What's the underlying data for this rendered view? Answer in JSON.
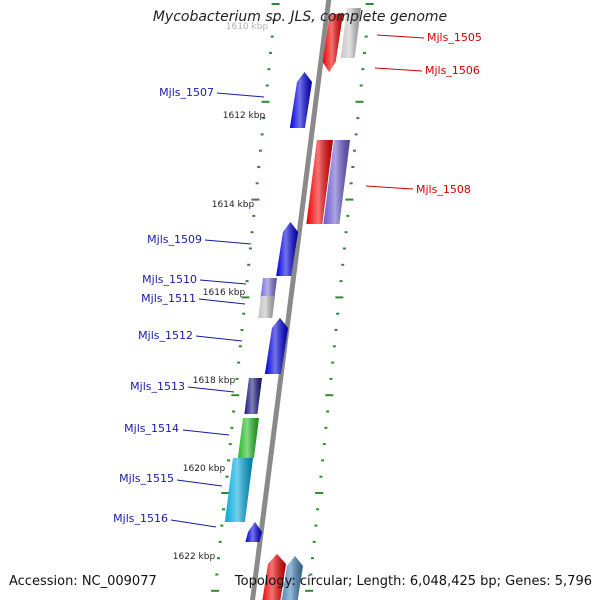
{
  "title": "Mycobacterium sp. JLS, complete genome",
  "footer": {
    "accession": "Accession: NC_009077",
    "summary": "Topology: circular; Length: 6,048,425 bp; Genes: 5,796"
  },
  "colors": {
    "backbone": "#8a8a8a",
    "tick": "#2e8b2e",
    "forward_label": "#d40000",
    "reverse_label": "#1a1aa8",
    "coord_label": "#222222"
  },
  "scale_labels": [
    {
      "text": "1610 kbp",
      "position_kbp": 1610
    },
    {
      "text": "1612 kbp",
      "position_kbp": 1612
    },
    {
      "text": "1614 kbp",
      "position_kbp": 1614
    },
    {
      "text": "1616 kbp",
      "position_kbp": 1616
    },
    {
      "text": "1618 kbp",
      "position_kbp": 1618
    },
    {
      "text": "1620 kbp",
      "position_kbp": 1620
    },
    {
      "text": "1622 kbp",
      "position_kbp": 1622
    }
  ],
  "genes": [
    {
      "label": "Mjls_1505",
      "strand": "+",
      "color": "#ee0000"
    },
    {
      "label": "Mjls_1506",
      "strand": "+",
      "color": "#c8c8c8"
    },
    {
      "label": "Mjls_1507",
      "strand": "-",
      "color": "#0000dd"
    },
    {
      "label": "Mjls_1508",
      "strand": "+",
      "color": "#6a5acd"
    },
    {
      "label": "Mjls_1509",
      "strand": "-",
      "color": "#0000dd"
    },
    {
      "label": "Mjls_1510",
      "strand": "-",
      "color": "#7b6fd8"
    },
    {
      "label": "Mjls_1511",
      "strand": "-",
      "color": "#c0c0c0"
    },
    {
      "label": "Mjls_1512",
      "strand": "-",
      "color": "#0000dd"
    },
    {
      "label": "Mjls_1513",
      "strand": "-",
      "color": "#1a1a80"
    },
    {
      "label": "Mjls_1514",
      "strand": "-",
      "color": "#22bb22"
    },
    {
      "label": "Mjls_1515",
      "strand": "-",
      "color": "#00aadd"
    },
    {
      "label": "Mjls_1516",
      "strand": "-",
      "color": "#0000dd"
    }
  ]
}
